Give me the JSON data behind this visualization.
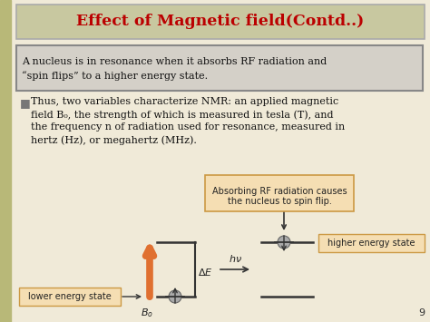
{
  "title": "Effect of Magnetic field(Contd..)",
  "title_color": "#bb0000",
  "title_bg": "#c8c8a0",
  "title_border": "#aaaaaa",
  "bg_color": "#f0ead8",
  "left_bar_color": "#b8b878",
  "quote_text_line1": "A nucleus is in resonance when it absorbs RF radiation and",
  "quote_text_line2": "“spin flips” to a higher energy state.",
  "quote_bg": "#d4d0c8",
  "quote_border": "#888888",
  "body_line1": "Thus, two variables characterize NMR: an applied magnetic",
  "body_line2": "field B₀, the strength of which is measured in tesla (T), and",
  "body_line3": "the frequency n of radiation used for resonance, measured in",
  "body_line4": "hertz (Hz), or megahertz (MHz).",
  "callout_line1": "Absorbing RF radiation causes",
  "callout_line2": "the nucleus to spin flip.",
  "callout_bg": "#f5deb3",
  "callout_border": "#cc9944",
  "lower_label": "lower energy state",
  "higher_label": "higher energy state",
  "page_num": "9",
  "orange_arrow_color": "#e07030",
  "line_color": "#333333",
  "label_bg": "#f5deb3",
  "label_border": "#cc9944",
  "nucleus_color": "#aaaaaa",
  "nucleus_edge": "#666666"
}
